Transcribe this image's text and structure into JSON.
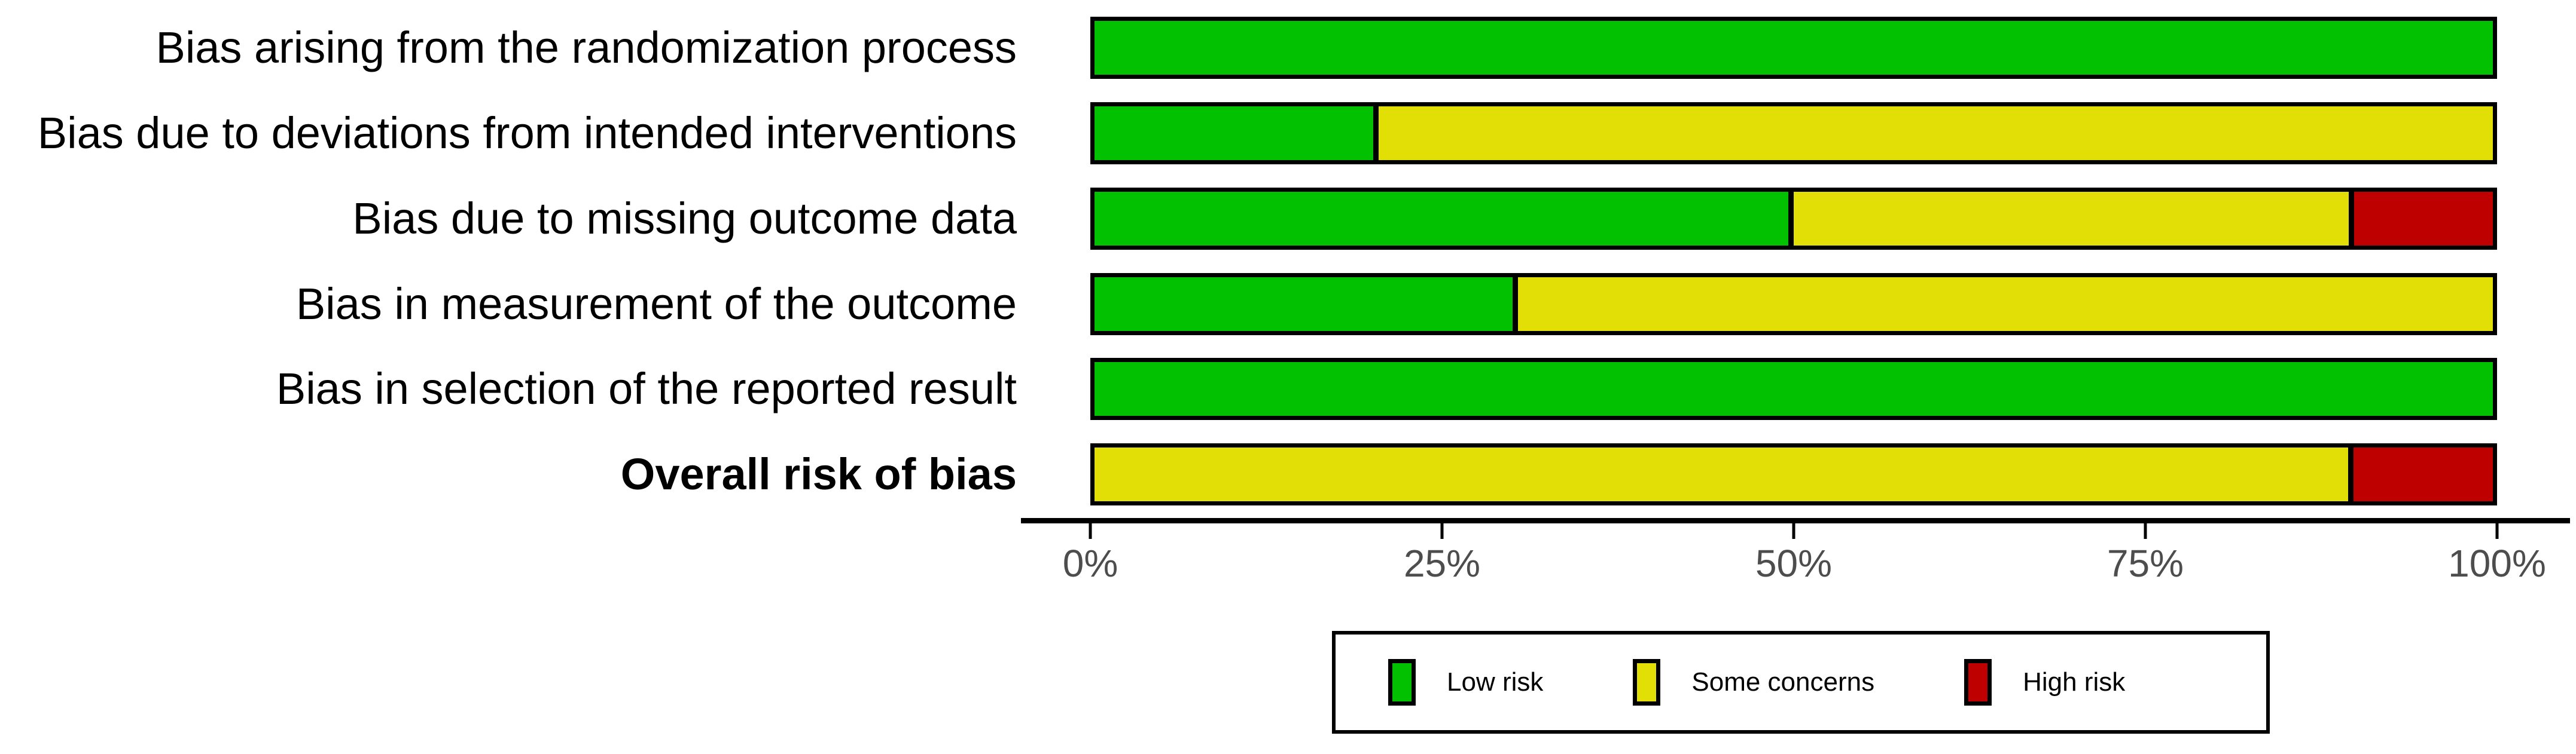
{
  "figure": {
    "description": "Risk of bias summary bar plot",
    "background_color": "#ffffff"
  },
  "chart_data": {
    "type": "bar",
    "orientation": "horizontal",
    "stacked": true,
    "title": "",
    "xlabel": "",
    "ylabel": "",
    "categories": [
      "Bias arising from the randomization process",
      "Bias due to deviations from intended interventions",
      "Bias due to missing outcome data",
      "Bias in measurement of the outcome",
      "Bias in selection of the reported result",
      "Overall risk of bias"
    ],
    "series": [
      {
        "name": "Low risk",
        "color": "#02C100",
        "values": [
          100,
          20,
          50,
          30,
          100,
          0
        ]
      },
      {
        "name": "Some concerns",
        "color": "#E2DF07",
        "values": [
          0,
          80,
          40,
          70,
          0,
          90
        ]
      },
      {
        "name": "High risk",
        "color": "#BF0000",
        "values": [
          0,
          0,
          10,
          0,
          0,
          10
        ]
      }
    ],
    "xlim": [
      0,
      100
    ],
    "x_tick_values": [
      0,
      25,
      50,
      75,
      100
    ],
    "x_tick_labels": [
      "0%",
      "25%",
      "50%",
      "75%",
      "100%"
    ],
    "grid": false,
    "legend_position": "bottom",
    "bar_outline_color": "#000000",
    "axis_line_color": "#000000",
    "axis_text_color": "#4d4d4d"
  }
}
